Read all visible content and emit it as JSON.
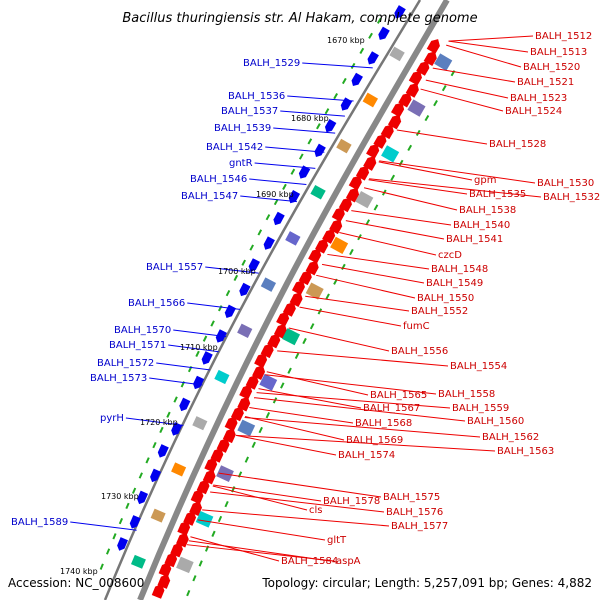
{
  "title": "Bacillus thuringiensis str. Al Hakam, complete genome",
  "footer": {
    "accession": "Accession: NC_008600",
    "topology": "Topology: circular; Length: 5,257,091 bp; Genes: 4,882"
  },
  "colors": {
    "plus_strand": "#0000ee",
    "minus_strand": "#ee0000",
    "backbone": "#888888",
    "tick": "#22aa22"
  },
  "kbp_labels": [
    "1670 kbp",
    "1680 kbp",
    "1690 kbp",
    "1700 kbp",
    "1710 kbp",
    "1720 kbp",
    "1730 kbp",
    "1740 kbp"
  ],
  "blue_labels": [
    "BALH_1529",
    "BALH_1536",
    "BALH_1537",
    "BALH_1539",
    "BALH_1542",
    "gntR",
    "BALH_1546",
    "BALH_1547",
    "BALH_1557",
    "BALH_1566",
    "BALH_1570",
    "BALH_1571",
    "BALH_1572",
    "BALH_1573",
    "pyrH",
    "BALH_1589"
  ],
  "red_labels": [
    "BALH_1512",
    "BALH_1513",
    "BALH_1520",
    "BALH_1521",
    "BALH_1523",
    "BALH_1524",
    "BALH_1528",
    "gpm",
    "BALH_1530",
    "BALH_1535",
    "BALH_1532",
    "BALH_1538",
    "BALH_1540",
    "BALH_1541",
    "czcD",
    "BALH_1548",
    "BALH_1549",
    "BALH_1550",
    "BALH_1552",
    "fumC",
    "BALH_1556",
    "BALH_1554",
    "BALH_1558",
    "BALH_1565",
    "BALH_1559",
    "BALH_1567",
    "BALH_1560",
    "BALH_1568",
    "BALH_1562",
    "BALH_1569",
    "BALH_1563",
    "BALH_1574",
    "BALH_1575",
    "BALH_1578",
    "BALH_1576",
    "cls",
    "BALH_1577",
    "gltT",
    "BALH_1584",
    "aspA"
  ]
}
